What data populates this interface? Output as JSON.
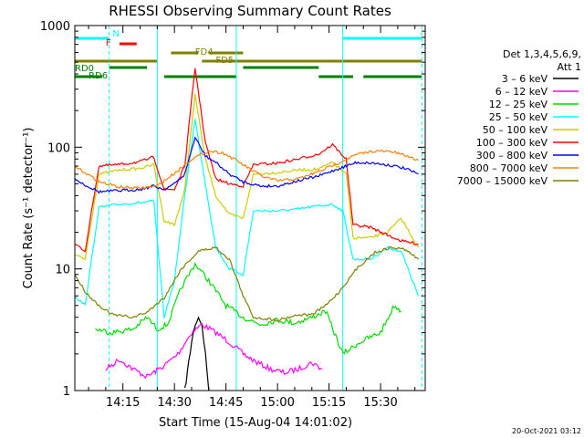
{
  "chart_data": {
    "type": "line",
    "title": "RHESSI Observing Summary Count Rates",
    "xlabel": "Start Time (15-Aug-04 14:01:02)",
    "ylabel": "Count Rate (s⁻¹ detector⁻¹)",
    "yscale": "log",
    "xlim": [
      "14:01",
      "15:43"
    ],
    "ylim": [
      1,
      1000
    ],
    "x_ticks": [
      "14:15",
      "14:30",
      "14:45",
      "15:00",
      "15:15",
      "15:30"
    ],
    "y_ticks": [
      "1",
      "10",
      "100",
      "1000"
    ],
    "grid": false,
    "legend": {
      "placement": "right",
      "header": [
        "Det 1,3,4,5,6,9,",
        "Att 1"
      ],
      "entries": [
        {
          "label": "3 – 6 keV",
          "color": "#000000"
        },
        {
          "label": "6 – 12 keV",
          "color": "#ff00ff"
        },
        {
          "label": "12 – 25 keV",
          "color": "#00dd00"
        },
        {
          "label": "25 – 50 keV",
          "color": "#00ffff"
        },
        {
          "label": "50 – 100 keV",
          "color": "#cccc00"
        },
        {
          "label": "100 – 300 keV",
          "color": "#ff0000"
        },
        {
          "label": "300 – 800 keV",
          "color": "#0000ff"
        },
        {
          "label": "800 – 7000 keV",
          "color": "#ff8000"
        },
        {
          "label": "7000 – 15000 keV",
          "color": "#808000"
        }
      ]
    },
    "flag_labels": [
      "N",
      "F",
      "FD4",
      "FD5",
      "RD0",
      "RD6"
    ],
    "flag_colors": {
      "N": "#00ffff",
      "F": "#ff0000",
      "FD": "#808000",
      "RD": "#008000"
    },
    "series": [
      {
        "name": "3 – 6 keV",
        "color": "#000000",
        "points": [
          [
            "14:33",
            1
          ],
          [
            "14:35",
            2.5
          ],
          [
            "14:36",
            3.5
          ],
          [
            "14:37",
            4
          ],
          [
            "14:38",
            3.5
          ],
          [
            "14:39",
            2
          ],
          [
            "14:40",
            1
          ]
        ]
      },
      {
        "name": "6 – 12 keV",
        "color": "#ff00ff",
        "points": [
          [
            "14:10",
            1.5
          ],
          [
            "14:14",
            1.8
          ],
          [
            "14:18",
            1.5
          ],
          [
            "14:22",
            1.3
          ],
          [
            "14:27",
            1.6
          ],
          [
            "14:31",
            2
          ],
          [
            "14:35",
            3
          ],
          [
            "14:38",
            3.5
          ],
          [
            "14:42",
            3
          ],
          [
            "14:46",
            2.5
          ],
          [
            "14:50",
            2
          ],
          [
            "14:54",
            1.7
          ],
          [
            "14:58",
            1.5
          ],
          [
            "15:02",
            1.4
          ],
          [
            "15:06",
            1.5
          ],
          [
            "15:10",
            1.7
          ],
          [
            "15:13",
            1.5
          ]
        ]
      },
      {
        "name": "12 – 25 keV",
        "color": "#00dd00",
        "points": [
          [
            "14:07",
            3.2
          ],
          [
            "14:12",
            3
          ],
          [
            "14:18",
            3.2
          ],
          [
            "14:22",
            4
          ],
          [
            "14:25",
            3.2
          ],
          [
            "14:28",
            3.5
          ],
          [
            "14:32",
            7
          ],
          [
            "14:36",
            11
          ],
          [
            "14:40",
            8
          ],
          [
            "14:45",
            5
          ],
          [
            "14:50",
            4
          ],
          [
            "14:55",
            3.5
          ],
          [
            "15:00",
            3.8
          ],
          [
            "15:05",
            3.6
          ],
          [
            "15:10",
            4
          ],
          [
            "15:14",
            4.5
          ],
          [
            "15:19",
            2
          ],
          [
            "15:24",
            2.5
          ],
          [
            "15:30",
            3
          ],
          [
            "15:34",
            5
          ],
          [
            "15:36",
            4.5
          ]
        ]
      },
      {
        "name": "25 – 50 keV",
        "color": "#00ffff",
        "points": [
          [
            "14:01",
            6
          ],
          [
            "14:04",
            5
          ],
          [
            "14:08",
            32
          ],
          [
            "14:14",
            34
          ],
          [
            "14:20",
            35
          ],
          [
            "14:24",
            36
          ],
          [
            "14:27",
            4
          ],
          [
            "14:30",
            8
          ],
          [
            "14:33",
            40
          ],
          [
            "14:36",
            170
          ],
          [
            "14:39",
            50
          ],
          [
            "14:42",
            15
          ],
          [
            "14:46",
            10
          ],
          [
            "14:50",
            9
          ],
          [
            "14:53",
            30
          ],
          [
            "15:00",
            30
          ],
          [
            "15:06",
            31
          ],
          [
            "15:12",
            33
          ],
          [
            "15:16",
            34
          ],
          [
            "15:19",
            30
          ],
          [
            "15:22",
            12
          ],
          [
            "15:27",
            12
          ],
          [
            "15:32",
            15
          ],
          [
            "15:36",
            14
          ],
          [
            "15:41",
            6
          ]
        ]
      },
      {
        "name": "50 – 100 keV",
        "color": "#cccc00",
        "points": [
          [
            "14:01",
            13
          ],
          [
            "14:04",
            12
          ],
          [
            "14:08",
            60
          ],
          [
            "14:14",
            65
          ],
          [
            "14:20",
            67
          ],
          [
            "14:24",
            72
          ],
          [
            "14:27",
            25
          ],
          [
            "14:30",
            23
          ],
          [
            "14:33",
            45
          ],
          [
            "14:36",
            270
          ],
          [
            "14:39",
            80
          ],
          [
            "14:42",
            40
          ],
          [
            "14:46",
            28
          ],
          [
            "14:50",
            26
          ],
          [
            "14:53",
            60
          ],
          [
            "15:00",
            62
          ],
          [
            "15:06",
            65
          ],
          [
            "15:12",
            66
          ],
          [
            "15:16",
            75
          ],
          [
            "15:20",
            60
          ],
          [
            "15:22",
            18
          ],
          [
            "15:27",
            18
          ],
          [
            "15:32",
            20
          ],
          [
            "15:36",
            26
          ],
          [
            "15:41",
            15
          ]
        ]
      },
      {
        "name": "100 – 300 keV",
        "color": "#ff0000",
        "points": [
          [
            "14:01",
            16
          ],
          [
            "14:04",
            14
          ],
          [
            "14:08",
            70
          ],
          [
            "14:14",
            72
          ],
          [
            "14:20",
            76
          ],
          [
            "14:24",
            83
          ],
          [
            "14:27",
            45
          ],
          [
            "14:30",
            45
          ],
          [
            "14:33",
            70
          ],
          [
            "14:36",
            450
          ],
          [
            "14:39",
            110
          ],
          [
            "14:42",
            55
          ],
          [
            "14:46",
            50
          ],
          [
            "14:50",
            48
          ],
          [
            "14:53",
            72
          ],
          [
            "15:00",
            74
          ],
          [
            "15:06",
            80
          ],
          [
            "15:12",
            88
          ],
          [
            "15:16",
            105
          ],
          [
            "15:20",
            80
          ],
          [
            "15:22",
            23
          ],
          [
            "15:27",
            22
          ],
          [
            "15:32",
            19
          ],
          [
            "15:36",
            17
          ],
          [
            "15:41",
            16
          ]
        ]
      },
      {
        "name": "300 – 800 keV",
        "color": "#0000ff",
        "points": [
          [
            "14:01",
            55
          ],
          [
            "14:04",
            49
          ],
          [
            "14:08",
            43
          ],
          [
            "14:14",
            44
          ],
          [
            "14:20",
            45
          ],
          [
            "14:24",
            48
          ],
          [
            "14:27",
            45
          ],
          [
            "14:30",
            50
          ],
          [
            "14:33",
            60
          ],
          [
            "14:36",
            120
          ],
          [
            "14:39",
            85
          ],
          [
            "14:42",
            75
          ],
          [
            "14:46",
            60
          ],
          [
            "14:50",
            52
          ],
          [
            "14:55",
            48
          ],
          [
            "15:00",
            48
          ],
          [
            "15:06",
            53
          ],
          [
            "15:12",
            58
          ],
          [
            "15:18",
            67
          ],
          [
            "15:23",
            75
          ],
          [
            "15:28",
            74
          ],
          [
            "15:33",
            71
          ],
          [
            "15:37",
            67
          ],
          [
            "15:41",
            60
          ]
        ]
      },
      {
        "name": "800 – 7000 keV",
        "color": "#ff8000",
        "points": [
          [
            "14:01",
            69
          ],
          [
            "14:04",
            62
          ],
          [
            "14:08",
            52
          ],
          [
            "14:14",
            47
          ],
          [
            "14:20",
            46
          ],
          [
            "14:25",
            48
          ],
          [
            "14:30",
            61
          ],
          [
            "14:35",
            80
          ],
          [
            "14:40",
            93
          ],
          [
            "14:44",
            90
          ],
          [
            "14:48",
            78
          ],
          [
            "14:52",
            66
          ],
          [
            "14:56",
            57
          ],
          [
            "15:00",
            53
          ],
          [
            "15:06",
            55
          ],
          [
            "15:12",
            63
          ],
          [
            "15:18",
            75
          ],
          [
            "15:23",
            87
          ],
          [
            "15:28",
            93
          ],
          [
            "15:33",
            92
          ],
          [
            "15:37",
            86
          ],
          [
            "15:41",
            78
          ]
        ]
      },
      {
        "name": "7000 – 15000 keV",
        "color": "#808000",
        "points": [
          [
            "14:01",
            9
          ],
          [
            "14:04",
            6.5
          ],
          [
            "14:08",
            5
          ],
          [
            "14:12",
            4.2
          ],
          [
            "14:18",
            4
          ],
          [
            "14:22",
            4.4
          ],
          [
            "14:27",
            5.8
          ],
          [
            "14:32",
            10
          ],
          [
            "14:37",
            14
          ],
          [
            "14:42",
            15
          ],
          [
            "14:46",
            12
          ],
          [
            "14:50",
            6
          ],
          [
            "14:53",
            4
          ],
          [
            "15:00",
            3.8
          ],
          [
            "15:06",
            4.2
          ],
          [
            "15:10",
            4.2
          ],
          [
            "15:14",
            5
          ],
          [
            "15:18",
            6.5
          ],
          [
            "15:23",
            10
          ],
          [
            "15:28",
            13.5
          ],
          [
            "15:33",
            15
          ],
          [
            "15:37",
            14.5
          ],
          [
            "15:41",
            12
          ]
        ]
      }
    ]
  },
  "footer": {
    "timestamp": "20-Oct-2021 03:12"
  }
}
